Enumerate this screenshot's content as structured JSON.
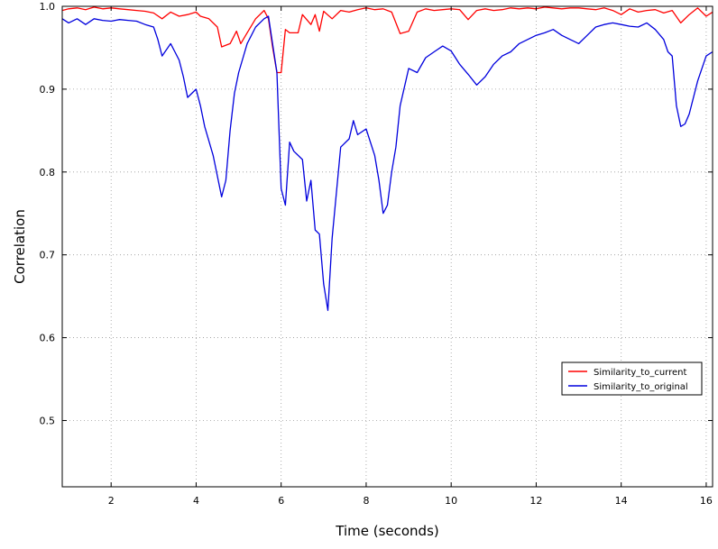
{
  "chart_data": {
    "type": "line",
    "xlabel": "Time (seconds)",
    "ylabel": "Correlation",
    "xlim": [
      0.85,
      16.15
    ],
    "ylim": [
      0.42,
      1.0
    ],
    "xticks": [
      2,
      4,
      6,
      8,
      10,
      12,
      14,
      16
    ],
    "yticks": [
      0.5,
      0.6,
      0.7,
      0.8,
      0.9,
      1.0
    ],
    "xtick_labels": [
      "2",
      "4",
      "6",
      "8",
      "10",
      "12",
      "14",
      "16"
    ],
    "ytick_labels": [
      "0.5",
      "0.6",
      "0.7",
      "0.8",
      "0.9",
      "1.0"
    ],
    "grid": true,
    "legend_position": "lower-right",
    "colors": {
      "current": "#ff0000",
      "original": "#0000dd"
    },
    "series": [
      {
        "name": "Similarity_to_current",
        "color": "#ff0000",
        "x": [
          0.85,
          1.0,
          1.2,
          1.4,
          1.6,
          1.8,
          2.0,
          2.2,
          2.4,
          2.6,
          2.8,
          3.0,
          3.2,
          3.4,
          3.6,
          3.8,
          4.0,
          4.1,
          4.3,
          4.5,
          4.6,
          4.8,
          4.95,
          5.05,
          5.2,
          5.4,
          5.6,
          5.7,
          5.8,
          5.9,
          6.0,
          6.1,
          6.2,
          6.4,
          6.5,
          6.7,
          6.8,
          6.9,
          7.0,
          7.2,
          7.4,
          7.6,
          7.8,
          8.0,
          8.2,
          8.4,
          8.6,
          8.8,
          9.0,
          9.2,
          9.4,
          9.6,
          9.8,
          10.0,
          10.2,
          10.4,
          10.6,
          10.8,
          11.0,
          11.2,
          11.4,
          11.6,
          11.8,
          12.0,
          12.2,
          12.4,
          12.6,
          12.8,
          13.0,
          13.2,
          13.4,
          13.6,
          13.8,
          14.0,
          14.2,
          14.4,
          14.6,
          14.8,
          15.0,
          15.2,
          15.4,
          15.6,
          15.8,
          16.0,
          16.15
        ],
        "y": [
          0.995,
          0.997,
          0.998,
          0.996,
          0.999,
          0.997,
          0.998,
          0.997,
          0.996,
          0.995,
          0.994,
          0.992,
          0.985,
          0.993,
          0.988,
          0.99,
          0.993,
          0.988,
          0.985,
          0.975,
          0.951,
          0.955,
          0.97,
          0.955,
          0.968,
          0.985,
          0.995,
          0.985,
          0.95,
          0.92,
          0.92,
          0.972,
          0.968,
          0.968,
          0.99,
          0.978,
          0.99,
          0.97,
          0.994,
          0.985,
          0.995,
          0.993,
          0.996,
          0.998,
          0.996,
          0.997,
          0.993,
          0.967,
          0.97,
          0.993,
          0.997,
          0.995,
          0.996,
          0.997,
          0.996,
          0.984,
          0.995,
          0.997,
          0.995,
          0.996,
          0.998,
          0.997,
          0.998,
          0.997,
          0.999,
          0.998,
          0.997,
          0.998,
          0.998,
          0.997,
          0.996,
          0.998,
          0.995,
          0.99,
          0.997,
          0.993,
          0.995,
          0.996,
          0.992,
          0.995,
          0.98,
          0.99,
          0.998,
          0.988,
          0.993
        ]
      },
      {
        "name": "Similarity_to_original",
        "color": "#0000dd",
        "x": [
          0.85,
          1.0,
          1.2,
          1.4,
          1.6,
          1.8,
          2.0,
          2.2,
          2.4,
          2.6,
          2.8,
          3.0,
          3.1,
          3.2,
          3.4,
          3.5,
          3.6,
          3.7,
          3.8,
          4.0,
          4.1,
          4.2,
          4.4,
          4.6,
          4.7,
          4.8,
          4.9,
          5.0,
          5.2,
          5.4,
          5.6,
          5.7,
          5.9,
          6.0,
          6.1,
          6.2,
          6.3,
          6.5,
          6.6,
          6.7,
          6.8,
          6.9,
          7.0,
          7.1,
          7.2,
          7.4,
          7.6,
          7.7,
          7.8,
          8.0,
          8.2,
          8.3,
          8.4,
          8.5,
          8.6,
          8.7,
          8.8,
          9.0,
          9.2,
          9.4,
          9.6,
          9.8,
          10.0,
          10.2,
          10.4,
          10.6,
          10.8,
          11.0,
          11.2,
          11.4,
          11.6,
          11.8,
          12.0,
          12.2,
          12.4,
          12.6,
          12.8,
          13.0,
          13.2,
          13.4,
          13.6,
          13.8,
          14.0,
          14.2,
          14.4,
          14.6,
          14.8,
          15.0,
          15.1,
          15.2,
          15.3,
          15.4,
          15.5,
          15.6,
          15.8,
          16.0,
          16.15
        ],
        "y": [
          0.985,
          0.98,
          0.985,
          0.978,
          0.985,
          0.983,
          0.982,
          0.984,
          0.983,
          0.982,
          0.978,
          0.975,
          0.96,
          0.94,
          0.955,
          0.945,
          0.935,
          0.915,
          0.89,
          0.9,
          0.88,
          0.855,
          0.82,
          0.77,
          0.79,
          0.85,
          0.895,
          0.92,
          0.955,
          0.975,
          0.985,
          0.988,
          0.92,
          0.78,
          0.76,
          0.836,
          0.825,
          0.815,
          0.765,
          0.79,
          0.73,
          0.725,
          0.665,
          0.633,
          0.72,
          0.83,
          0.84,
          0.862,
          0.845,
          0.852,
          0.82,
          0.79,
          0.75,
          0.76,
          0.8,
          0.83,
          0.88,
          0.925,
          0.92,
          0.938,
          0.945,
          0.952,
          0.946,
          0.93,
          0.918,
          0.905,
          0.915,
          0.93,
          0.94,
          0.945,
          0.955,
          0.96,
          0.965,
          0.968,
          0.972,
          0.965,
          0.96,
          0.955,
          0.965,
          0.975,
          0.978,
          0.98,
          0.978,
          0.976,
          0.975,
          0.98,
          0.972,
          0.96,
          0.945,
          0.94,
          0.88,
          0.855,
          0.858,
          0.87,
          0.91,
          0.94,
          0.945
        ]
      }
    ]
  }
}
